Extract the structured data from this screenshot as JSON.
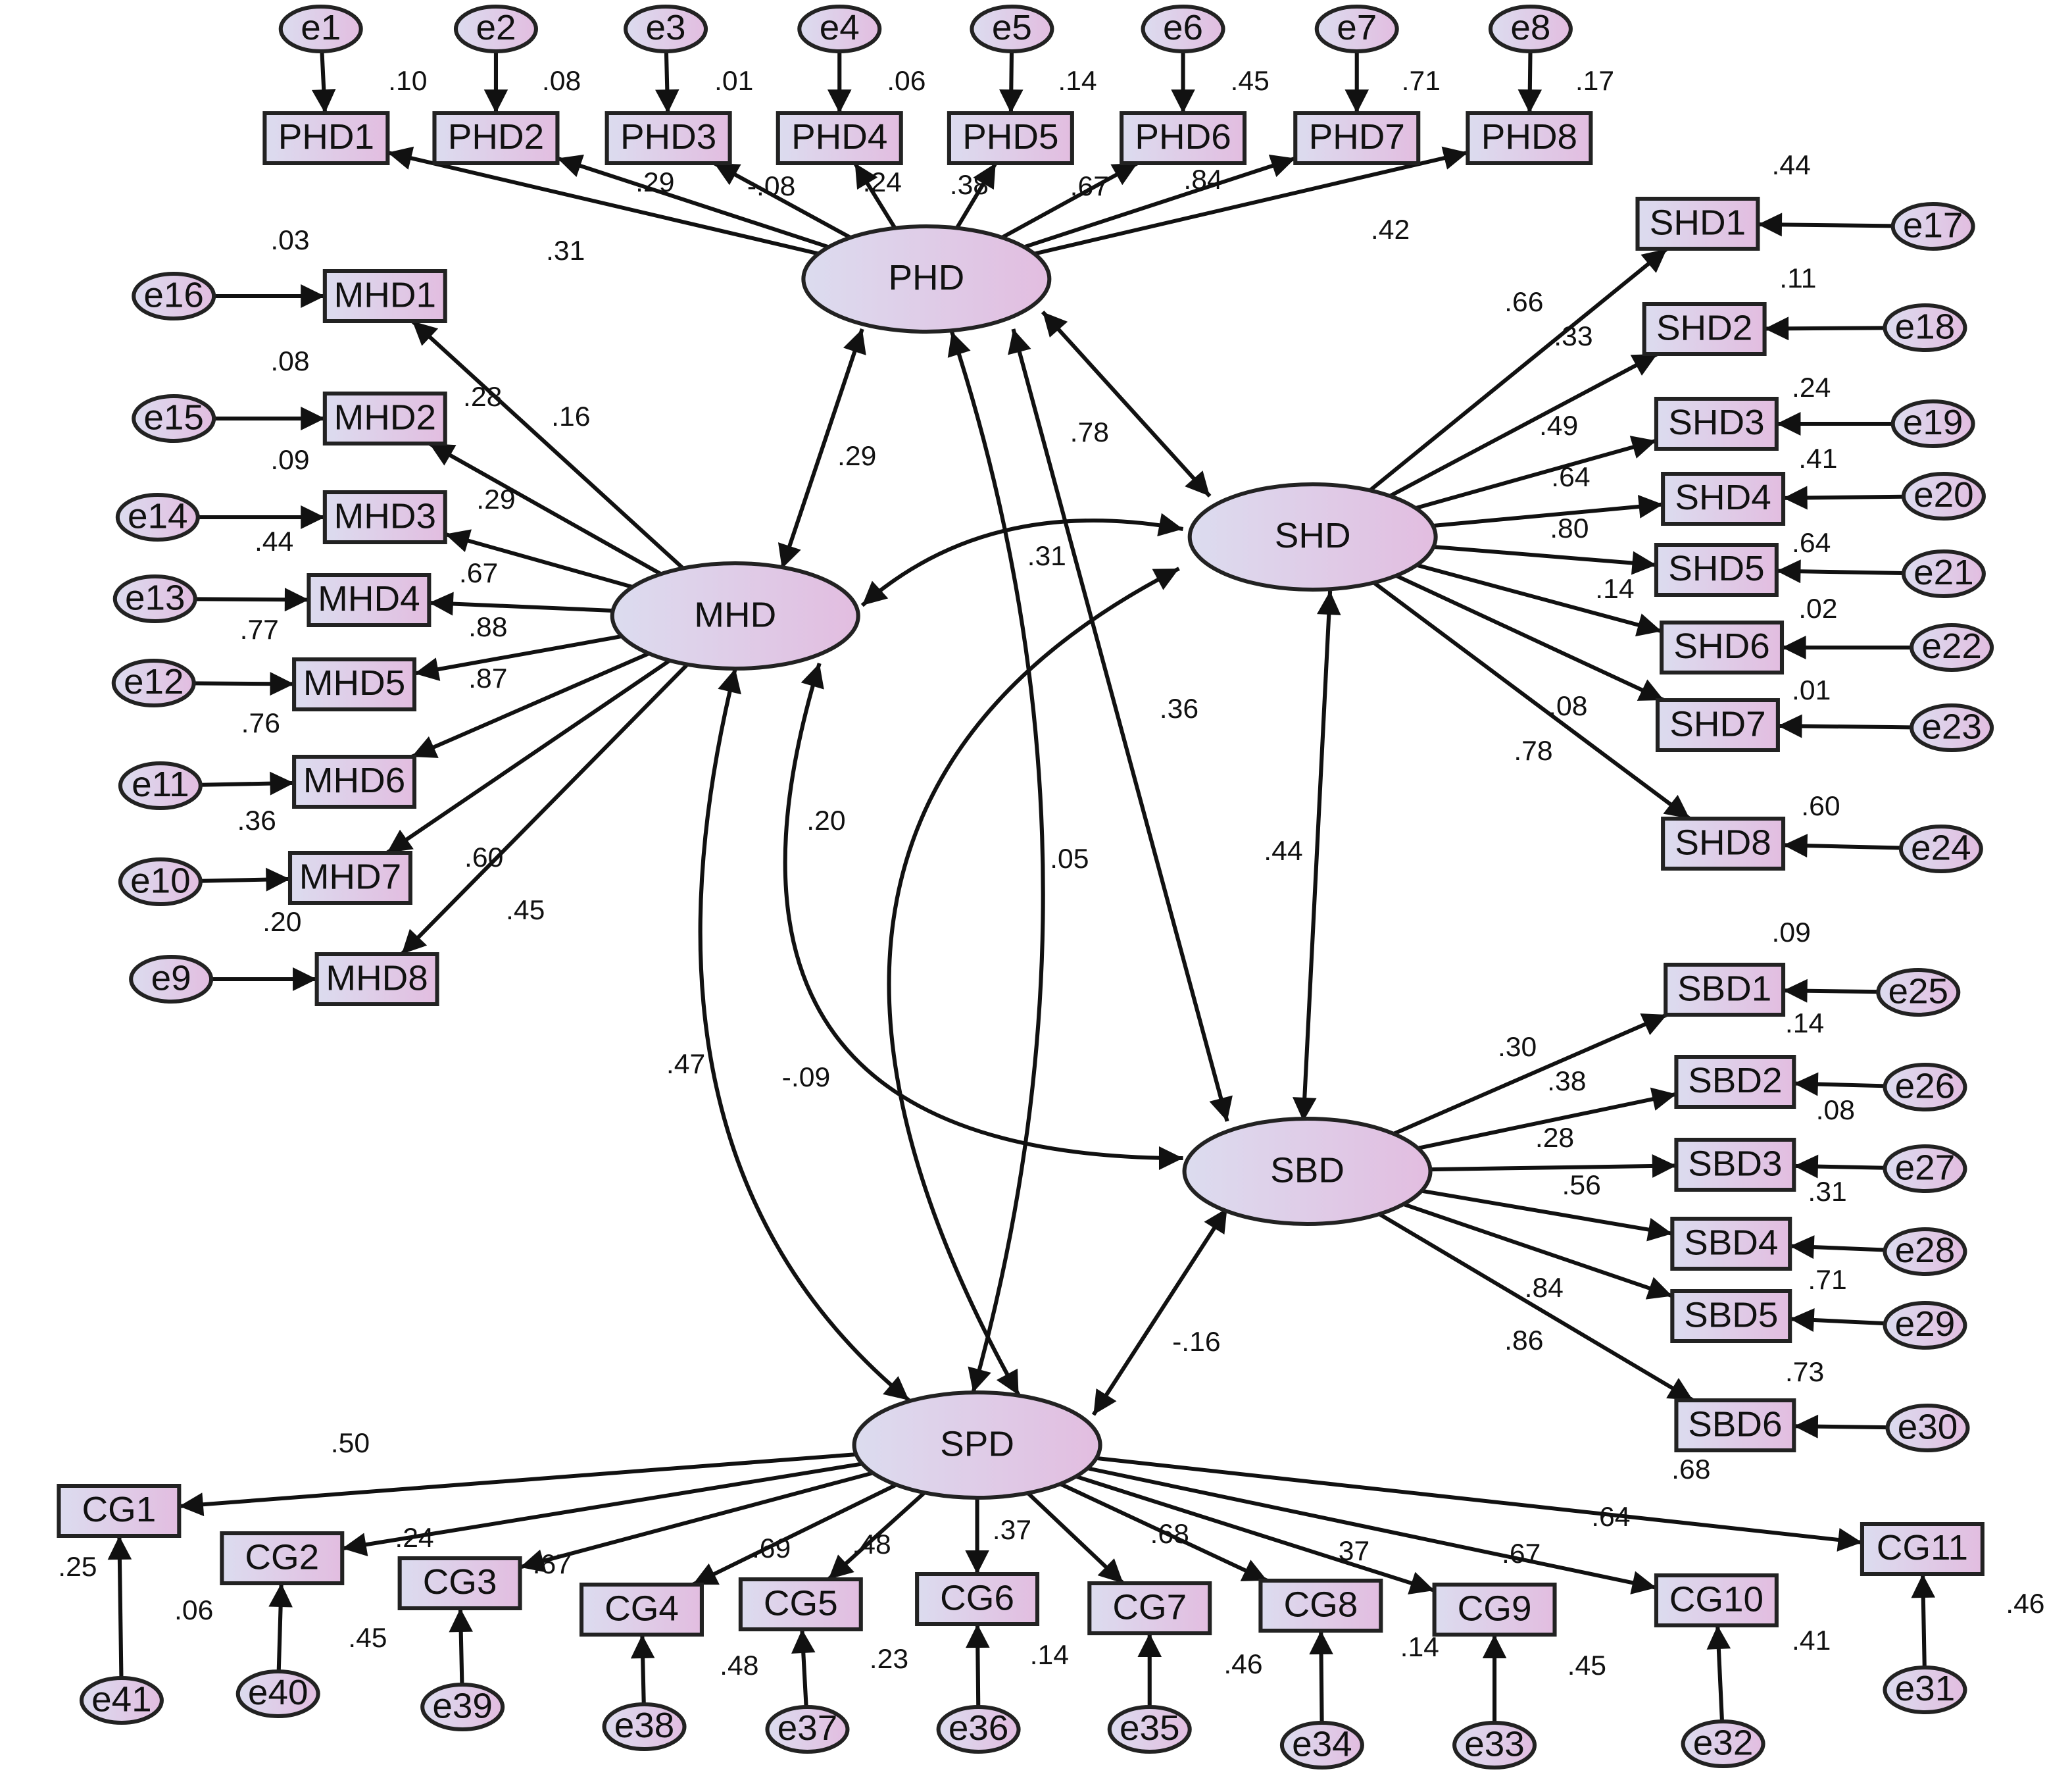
{
  "colors": {
    "stroke": "#111111",
    "fill_left": "#dcdcef",
    "fill_right": "#e2bde0",
    "background": "#ffffff"
  },
  "latent": [
    {
      "id": "PHD",
      "label": "PHD"
    },
    {
      "id": "MHD",
      "label": "MHD"
    },
    {
      "id": "SHD",
      "label": "SHD"
    },
    {
      "id": "SBD",
      "label": "SBD"
    },
    {
      "id": "SPD",
      "label": "SPD"
    }
  ],
  "indicators": [
    {
      "id": "PHD1",
      "label": "PHD1",
      "factor": "PHD",
      "error": "e1",
      "loading": ".31",
      "r2": ".10"
    },
    {
      "id": "PHD2",
      "label": "PHD2",
      "factor": "PHD",
      "error": "e2",
      "loading": ".29",
      "r2": ".08"
    },
    {
      "id": "PHD3",
      "label": "PHD3",
      "factor": "PHD",
      "error": "e3",
      "loading": "-.08",
      "r2": ".01"
    },
    {
      "id": "PHD4",
      "label": "PHD4",
      "factor": "PHD",
      "error": "e4",
      "loading": ".24",
      "r2": ".06"
    },
    {
      "id": "PHD5",
      "label": "PHD5",
      "factor": "PHD",
      "error": "e5",
      "loading": ".38",
      "r2": ".14"
    },
    {
      "id": "PHD6",
      "label": "PHD6",
      "factor": "PHD",
      "error": "e6",
      "loading": ".67",
      "r2": ".45"
    },
    {
      "id": "PHD7",
      "label": "PHD7",
      "factor": "PHD",
      "error": "e7",
      "loading": ".84",
      "r2": ".71"
    },
    {
      "id": "PHD8",
      "label": "PHD8",
      "factor": "PHD",
      "error": "e8",
      "loading": ".42",
      "r2": ".17"
    },
    {
      "id": "MHD1",
      "label": "MHD1",
      "factor": "MHD",
      "error": "e16",
      "loading": ".16",
      "r2": ".03"
    },
    {
      "id": "MHD2",
      "label": "MHD2",
      "factor": "MHD",
      "error": "e15",
      "loading": ".28",
      "r2": ".08"
    },
    {
      "id": "MHD3",
      "label": "MHD3",
      "factor": "MHD",
      "error": "e14",
      "loading": ".29",
      "r2": ".09"
    },
    {
      "id": "MHD4",
      "label": "MHD4",
      "factor": "MHD",
      "error": "e13",
      "loading": ".67",
      "r2": ".44"
    },
    {
      "id": "MHD5",
      "label": "MHD5",
      "factor": "MHD",
      "error": "e12",
      "loading": ".88",
      "r2": ".77"
    },
    {
      "id": "MHD6",
      "label": "MHD6",
      "factor": "MHD",
      "error": "e11",
      "loading": ".87",
      "r2": ".76"
    },
    {
      "id": "MHD7",
      "label": "MHD7",
      "factor": "MHD",
      "error": "e10",
      "loading": ".60",
      "r2": ".36"
    },
    {
      "id": "MHD8",
      "label": "MHD8",
      "factor": "MHD",
      "error": "e9",
      "loading": ".45",
      "r2": ".20"
    },
    {
      "id": "SHD1",
      "label": "SHD1",
      "factor": "SHD",
      "error": "e17",
      "loading": ".66",
      "r2": ".44"
    },
    {
      "id": "SHD2",
      "label": "SHD2",
      "factor": "SHD",
      "error": "e18",
      "loading": ".33",
      "r2": ".11"
    },
    {
      "id": "SHD3",
      "label": "SHD3",
      "factor": "SHD",
      "error": "e19",
      "loading": ".49",
      "r2": ".24"
    },
    {
      "id": "SHD4",
      "label": "SHD4",
      "factor": "SHD",
      "error": "e20",
      "loading": ".64",
      "r2": ".41"
    },
    {
      "id": "SHD5",
      "label": "SHD5",
      "factor": "SHD",
      "error": "e21",
      "loading": ".80",
      "r2": ".64"
    },
    {
      "id": "SHD6",
      "label": "SHD6",
      "factor": "SHD",
      "error": "e22",
      "loading": ".14",
      "r2": ".02"
    },
    {
      "id": "SHD7",
      "label": "SHD7",
      "factor": "SHD",
      "error": "e23",
      "loading": ".08",
      "r2": ".01"
    },
    {
      "id": "SHD8",
      "label": "SHD8",
      "factor": "SHD",
      "error": "e24",
      "loading": ".78",
      "r2": ".60"
    },
    {
      "id": "SBD1",
      "label": "SBD1",
      "factor": "SBD",
      "error": "e25",
      "loading": ".30",
      "r2": ".09"
    },
    {
      "id": "SBD2",
      "label": "SBD2",
      "factor": "SBD",
      "error": "e26",
      "loading": ".38",
      "r2": ".14"
    },
    {
      "id": "SBD3",
      "label": "SBD3",
      "factor": "SBD",
      "error": "e27",
      "loading": ".28",
      "r2": ".08"
    },
    {
      "id": "SBD4",
      "label": "SBD4",
      "factor": "SBD",
      "error": "e28",
      "loading": ".56",
      "r2": ".31"
    },
    {
      "id": "SBD5",
      "label": "SBD5",
      "factor": "SBD",
      "error": "e29",
      "loading": ".84",
      "r2": ".71"
    },
    {
      "id": "SBD6",
      "label": "SBD6",
      "factor": "SBD",
      "error": "e30",
      "loading": ".86",
      "r2": ".73"
    },
    {
      "id": "CG1",
      "label": "CG1",
      "factor": "SPD",
      "error": "e41",
      "loading": ".50",
      "r2": ".25"
    },
    {
      "id": "CG2",
      "label": "CG2",
      "factor": "SPD",
      "error": "e40",
      "loading": ".24",
      "r2": ".06"
    },
    {
      "id": "CG3",
      "label": "CG3",
      "factor": "SPD",
      "error": "e39",
      "loading": ".67",
      "r2": ".45"
    },
    {
      "id": "CG4",
      "label": "CG4",
      "factor": "SPD",
      "error": "e38",
      "loading": ".69",
      "r2": ".48"
    },
    {
      "id": "CG5",
      "label": "CG5",
      "factor": "SPD",
      "error": "e37",
      "loading": ".48",
      "r2": ".23"
    },
    {
      "id": "CG6",
      "label": "CG6",
      "factor": "SPD",
      "error": "e36",
      "loading": ".37",
      "r2": ".14"
    },
    {
      "id": "CG7",
      "label": "CG7",
      "factor": "SPD",
      "error": "e35",
      "loading": ".68",
      "r2": ".46"
    },
    {
      "id": "CG8",
      "label": "CG8",
      "factor": "SPD",
      "error": "e34",
      "loading": ".37",
      "r2": ".14"
    },
    {
      "id": "CG9",
      "label": "CG9",
      "factor": "SPD",
      "error": "e33",
      "loading": ".67",
      "r2": ".45"
    },
    {
      "id": "CG10",
      "label": "CG10",
      "factor": "SPD",
      "error": "e32",
      "loading": ".64",
      "r2": ".41"
    },
    {
      "id": "CG11",
      "label": "CG11",
      "factor": "SPD",
      "error": "e31",
      "loading": ".68",
      "r2": ".46"
    }
  ],
  "correlations": [
    {
      "id": "PHD-MHD",
      "from": "PHD",
      "to": "MHD",
      "value": ".29"
    },
    {
      "id": "PHD-SHD",
      "from": "PHD",
      "to": "SHD",
      "value": ".78"
    },
    {
      "id": "MHD-SHD",
      "from": "MHD",
      "to": "SHD",
      "value": ".31"
    },
    {
      "id": "PHD-SBD",
      "from": "PHD",
      "to": "SBD",
      "value": ".36"
    },
    {
      "id": "PHD-SPD",
      "from": "PHD",
      "to": "SPD",
      "value": ".05"
    },
    {
      "id": "MHD-SBD",
      "from": "MHD",
      "to": "SBD",
      "value": ".20"
    },
    {
      "id": "SHD-SBD",
      "from": "SHD",
      "to": "SBD",
      "value": ".44"
    },
    {
      "id": "MHD-SPD",
      "from": "MHD",
      "to": "SPD",
      "value": ".47"
    },
    {
      "id": "SHD-SPD",
      "from": "SHD",
      "to": "SPD",
      "value": "-.09"
    },
    {
      "id": "SBD-SPD",
      "from": "SBD",
      "to": "SPD",
      "value": "-.16"
    }
  ]
}
